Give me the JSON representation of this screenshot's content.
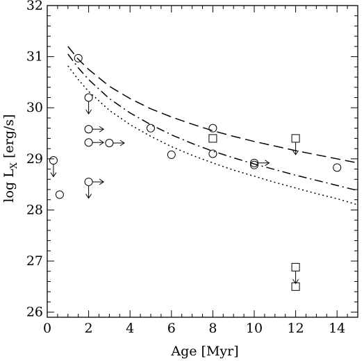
{
  "chart_data": {
    "type": "scatter",
    "title": "",
    "xlabel": "Age [Myr]",
    "ylabel": "log L",
    "ylabel_sub": "X",
    "ylabel_unit": " [erg/s]",
    "xlim": [
      0,
      15
    ],
    "ylim": [
      25.9,
      32
    ],
    "x_ticks": [
      0,
      2,
      4,
      6,
      8,
      10,
      12,
      14
    ],
    "y_ticks": [
      26,
      27,
      28,
      29,
      30,
      31,
      32
    ],
    "grid": false,
    "legend": "none",
    "curves": [
      {
        "style": "dashed",
        "x": [
          1.0,
          1.5,
          2,
          3,
          4,
          5,
          6,
          7,
          8,
          9,
          10,
          11,
          12,
          13,
          14,
          15
        ],
        "y": [
          31.2,
          30.95,
          30.75,
          30.42,
          30.18,
          29.98,
          29.82,
          29.68,
          29.55,
          29.44,
          29.34,
          29.25,
          29.16,
          29.08,
          29.0,
          28.92
        ]
      },
      {
        "style": "dashdot",
        "x": [
          1.0,
          1.5,
          2,
          3,
          4,
          5,
          6,
          7,
          8,
          9,
          10,
          11,
          12,
          13,
          14,
          15
        ],
        "y": [
          31.05,
          30.78,
          30.55,
          30.18,
          29.9,
          29.67,
          29.47,
          29.3,
          29.15,
          29.02,
          28.9,
          28.79,
          28.68,
          28.58,
          28.48,
          28.38
        ]
      },
      {
        "style": "dotted",
        "x": [
          1.0,
          1.5,
          2,
          3,
          4,
          5,
          6,
          7,
          8,
          9,
          10,
          11,
          12,
          13,
          14,
          15
        ],
        "y": [
          30.82,
          30.55,
          30.32,
          29.95,
          29.67,
          29.44,
          29.24,
          29.07,
          28.92,
          28.78,
          28.66,
          28.54,
          28.43,
          28.32,
          28.22,
          28.1
        ]
      }
    ],
    "circles": [
      {
        "x": 0.3,
        "y": 28.97,
        "upper": true,
        "lower_age": false
      },
      {
        "x": 0.6,
        "y": 28.3,
        "upper": false,
        "lower_age": false
      },
      {
        "x": 1.5,
        "y": 30.97,
        "upper": false,
        "lower_age": false
      },
      {
        "x": 2.0,
        "y": 30.2,
        "upper": true,
        "lower_age": false
      },
      {
        "x": 2.0,
        "y": 29.58,
        "upper": false,
        "lower_age": true
      },
      {
        "x": 2.0,
        "y": 29.32,
        "upper": false,
        "lower_age": true
      },
      {
        "x": 2.0,
        "y": 28.55,
        "upper": true,
        "lower_age": true
      },
      {
        "x": 3.0,
        "y": 29.31,
        "upper": false,
        "lower_age": true
      },
      {
        "x": 5.0,
        "y": 29.6,
        "upper": false,
        "lower_age": false
      },
      {
        "x": 6.0,
        "y": 29.08,
        "upper": false,
        "lower_age": false
      },
      {
        "x": 8.0,
        "y": 29.6,
        "upper": false,
        "lower_age": false
      },
      {
        "x": 8.0,
        "y": 29.1,
        "upper": false,
        "lower_age": false
      },
      {
        "x": 10.0,
        "y": 28.92,
        "upper": false,
        "lower_age": true
      },
      {
        "x": 10.0,
        "y": 28.88,
        "upper": false,
        "lower_age": false
      },
      {
        "x": 14.0,
        "y": 28.83,
        "upper": false,
        "lower_age": false
      }
    ],
    "squares": [
      {
        "x": 8.0,
        "y": 29.4,
        "upper": false
      },
      {
        "x": 12.0,
        "y": 29.4,
        "upper": true
      },
      {
        "x": 12.0,
        "y": 26.88,
        "upper": true
      },
      {
        "x": 12.0,
        "y": 26.5,
        "upper": false
      }
    ]
  }
}
